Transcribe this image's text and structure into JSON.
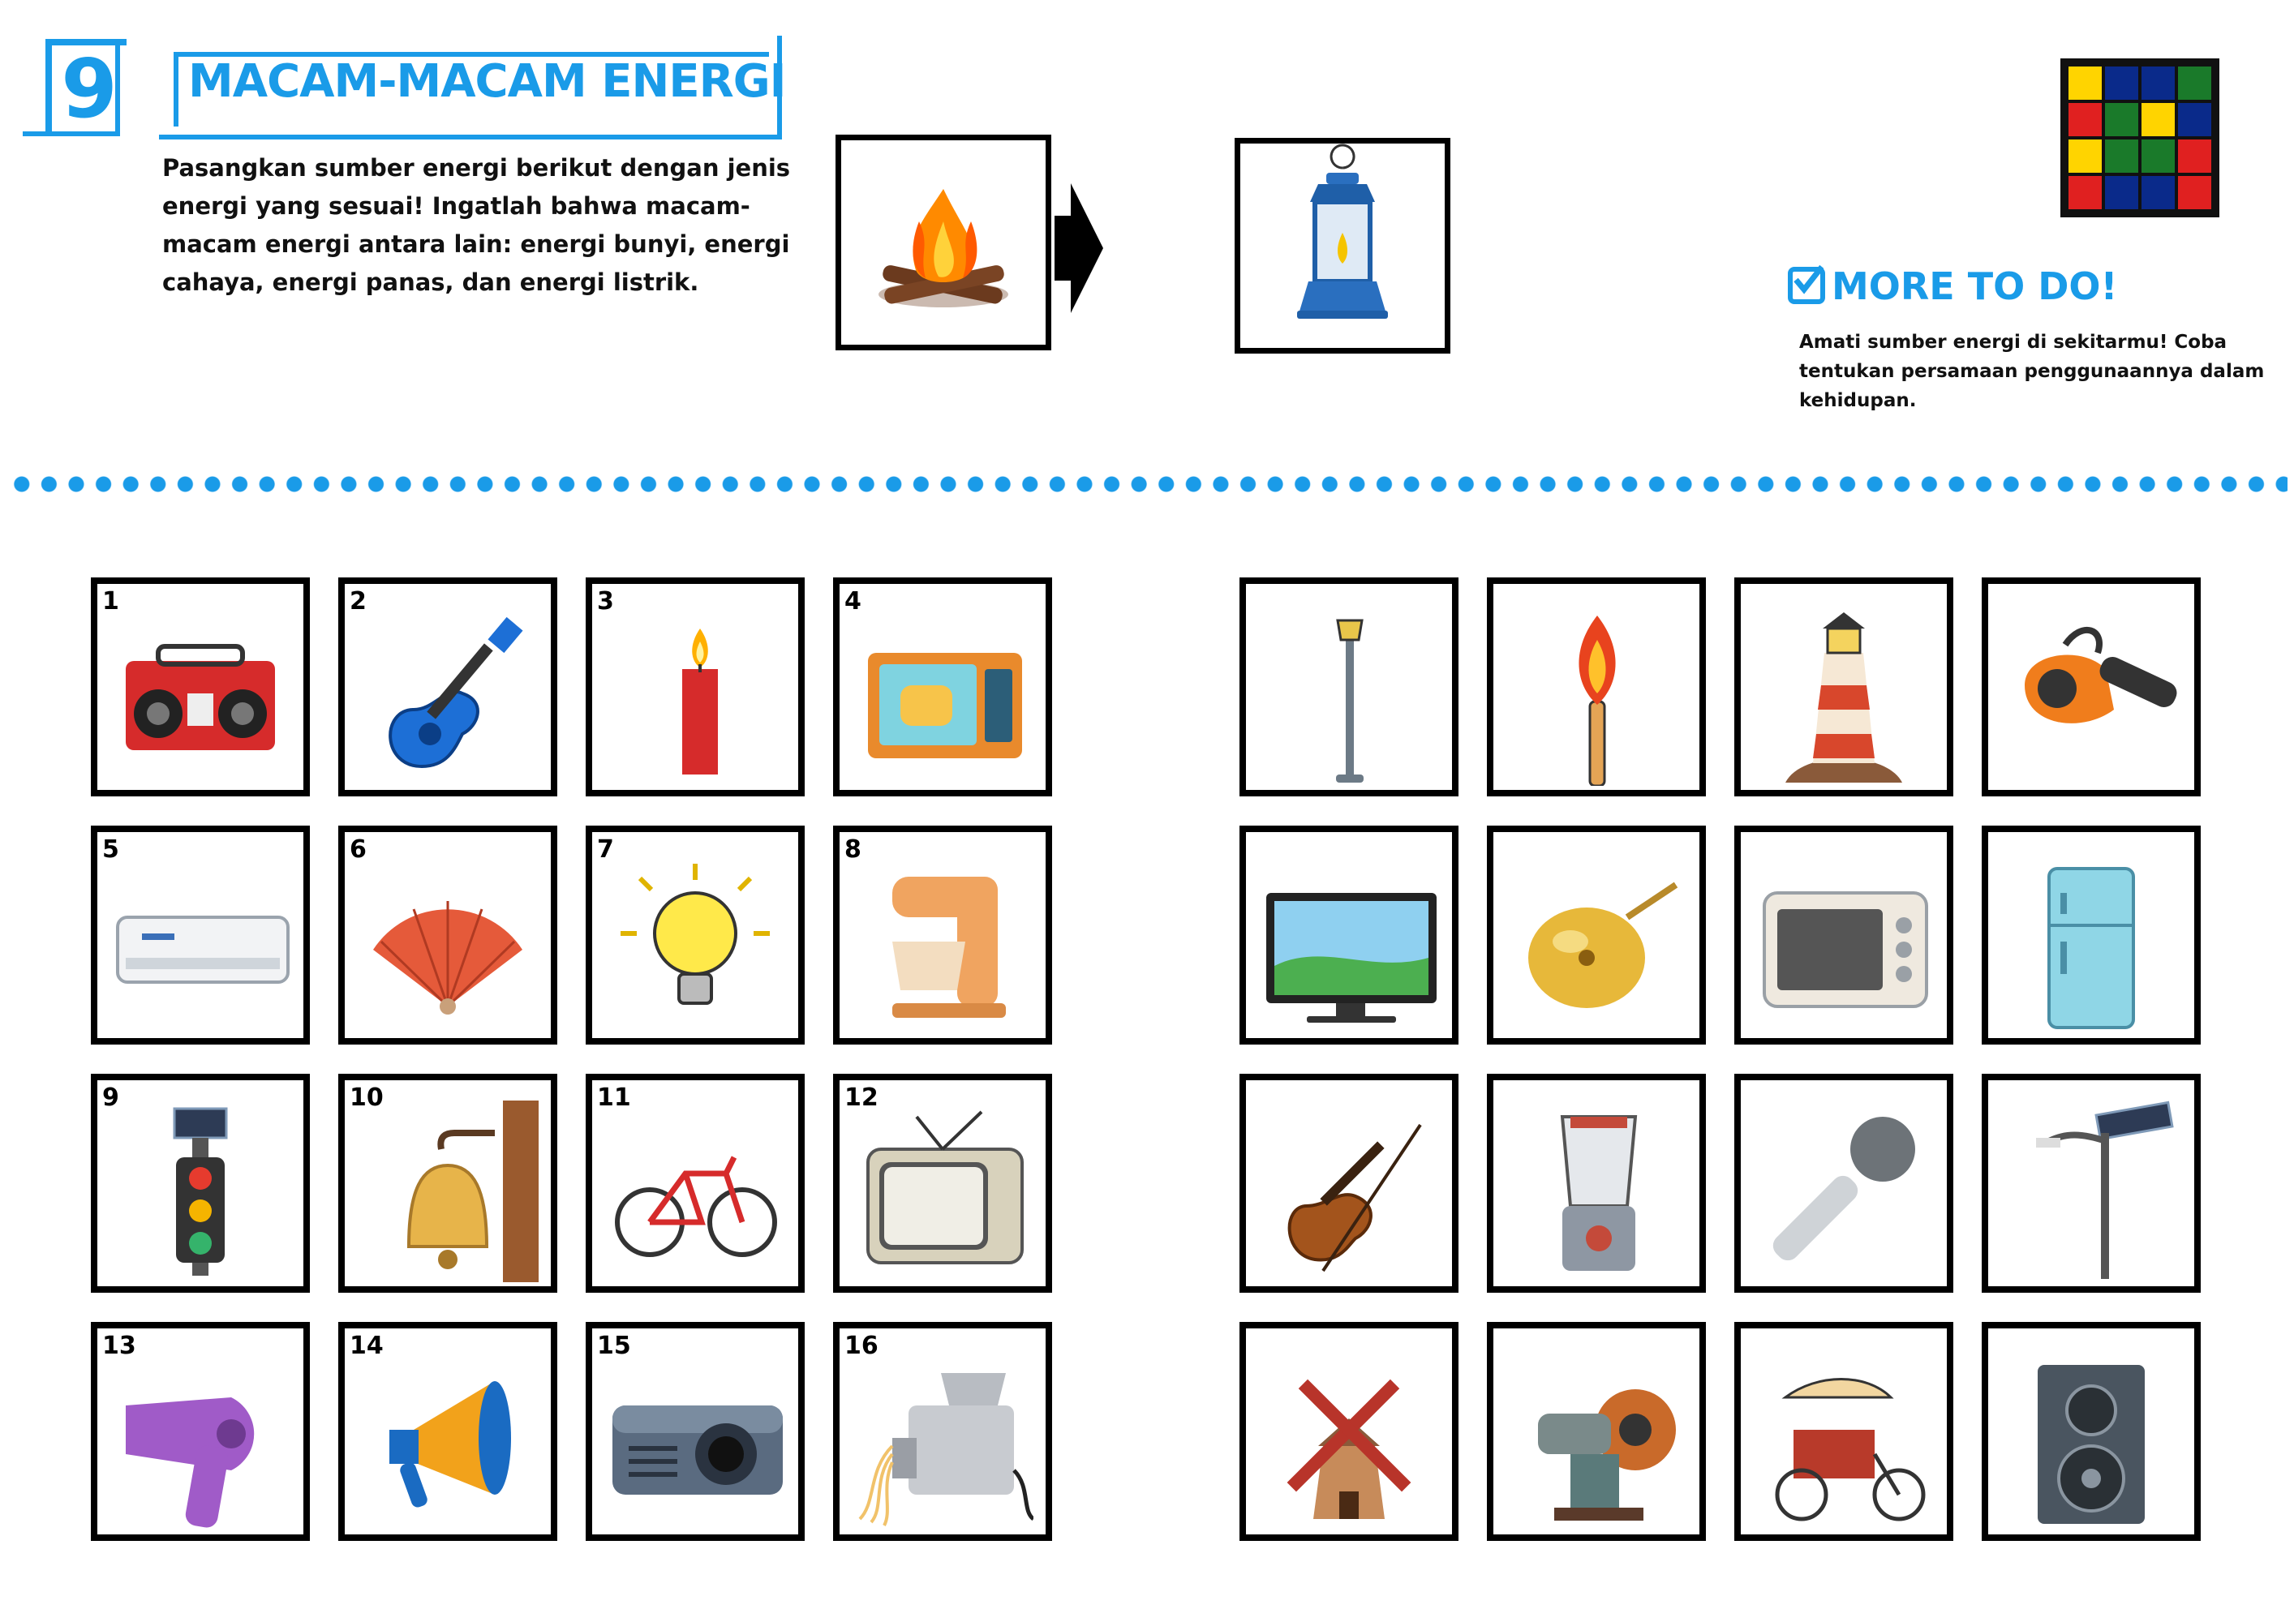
{
  "header": {
    "page_number": "9",
    "title": "MACAM-MACAM ENERGI",
    "instructions": "Pasangkan sumber energi berikut dengan jenis energi yang sesuai! Ingatlah bahwa macam-macam energi antara lain: energi bunyi, energi cahaya, energi panas, dan energi listrik."
  },
  "example": {
    "left_icon": "campfire-icon",
    "right_icon": "oil-lantern-icon"
  },
  "more_to_do": {
    "title": "MORE TO DO!",
    "text": "Amati sumber energi di sekitarmu! Coba tentukan persamaan penggunaannya dalam kehidupan."
  },
  "logo_colors": [
    "#ffd400",
    "#0a2a8a",
    "#0a2a8a",
    "#1a7a2a",
    "#e02020",
    "#1a7a2a",
    "#ffd400",
    "#0a2a8a",
    "#ffd400",
    "#1a7a2a",
    "#1a7a2a",
    "#e02020",
    "#e02020",
    "#0a2a8a",
    "#0a2a8a",
    "#e02020"
  ],
  "left_cards": [
    {
      "number": "1",
      "icon": "boombox-icon"
    },
    {
      "number": "2",
      "icon": "guitar-icon"
    },
    {
      "number": "3",
      "icon": "candle-icon"
    },
    {
      "number": "4",
      "icon": "microwave-icon"
    },
    {
      "number": "5",
      "icon": "air-conditioner-icon"
    },
    {
      "number": "6",
      "icon": "hand-fan-icon"
    },
    {
      "number": "7",
      "icon": "light-bulb-icon"
    },
    {
      "number": "8",
      "icon": "stand-mixer-icon"
    },
    {
      "number": "9",
      "icon": "solar-traffic-light-icon"
    },
    {
      "number": "10",
      "icon": "wall-bell-icon"
    },
    {
      "number": "11",
      "icon": "bicycle-icon"
    },
    {
      "number": "12",
      "icon": "old-television-icon"
    },
    {
      "number": "13",
      "icon": "hair-dryer-icon"
    },
    {
      "number": "14",
      "icon": "megaphone-icon"
    },
    {
      "number": "15",
      "icon": "projector-icon"
    },
    {
      "number": "16",
      "icon": "noodle-maker-icon"
    }
  ],
  "right_cards": [
    {
      "icon": "street-lamp-icon"
    },
    {
      "icon": "torch-icon"
    },
    {
      "icon": "lighthouse-icon"
    },
    {
      "icon": "leaf-blower-icon"
    },
    {
      "icon": "computer-monitor-icon"
    },
    {
      "icon": "brass-bell-icon"
    },
    {
      "icon": "toaster-oven-icon"
    },
    {
      "icon": "refrigerator-icon"
    },
    {
      "icon": "violin-icon"
    },
    {
      "icon": "blender-icon"
    },
    {
      "icon": "microphone-icon"
    },
    {
      "icon": "solar-street-light-icon"
    },
    {
      "icon": "windmill-icon"
    },
    {
      "icon": "grinder-machine-icon"
    },
    {
      "icon": "rickshaw-icon"
    },
    {
      "icon": "speaker-icon"
    }
  ]
}
